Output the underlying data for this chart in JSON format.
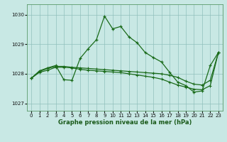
{
  "xlabel": "Graphe pression niveau de la mer (hPa)",
  "ylim": [
    1026.75,
    1030.35
  ],
  "xlim": [
    -0.5,
    23.5
  ],
  "yticks": [
    1027,
    1028,
    1029,
    1030
  ],
  "xticks": [
    0,
    1,
    2,
    3,
    4,
    5,
    6,
    7,
    8,
    9,
    10,
    11,
    12,
    13,
    14,
    15,
    16,
    17,
    18,
    19,
    20,
    21,
    22,
    23
  ],
  "bg_color": "#c8e8e4",
  "grid_color": "#90c0bc",
  "line_color": "#1a6b1a",
  "line1_y": [
    1027.85,
    1028.1,
    1028.2,
    1028.28,
    1027.8,
    1027.78,
    1028.52,
    1028.85,
    1029.15,
    1029.95,
    1029.52,
    1029.6,
    1029.25,
    1029.05,
    1028.72,
    1028.55,
    1028.4,
    1028.05,
    1027.72,
    1027.6,
    1027.38,
    1027.42,
    1028.28,
    1028.72
  ],
  "line2_y": [
    1027.85,
    1028.08,
    1028.18,
    1028.25,
    1028.25,
    1028.22,
    1028.2,
    1028.18,
    1028.16,
    1028.14,
    1028.12,
    1028.1,
    1028.08,
    1028.06,
    1028.04,
    1028.02,
    1028.0,
    1027.95,
    1027.88,
    1027.75,
    1027.65,
    1027.62,
    1027.78,
    1028.72
  ],
  "line3_y": [
    1027.85,
    1028.05,
    1028.12,
    1028.22,
    1028.22,
    1028.2,
    1028.15,
    1028.12,
    1028.1,
    1028.08,
    1028.06,
    1028.04,
    1028.0,
    1027.96,
    1027.92,
    1027.88,
    1027.82,
    1027.72,
    1027.62,
    1027.55,
    1027.48,
    1027.46,
    1027.6,
    1028.72
  ]
}
